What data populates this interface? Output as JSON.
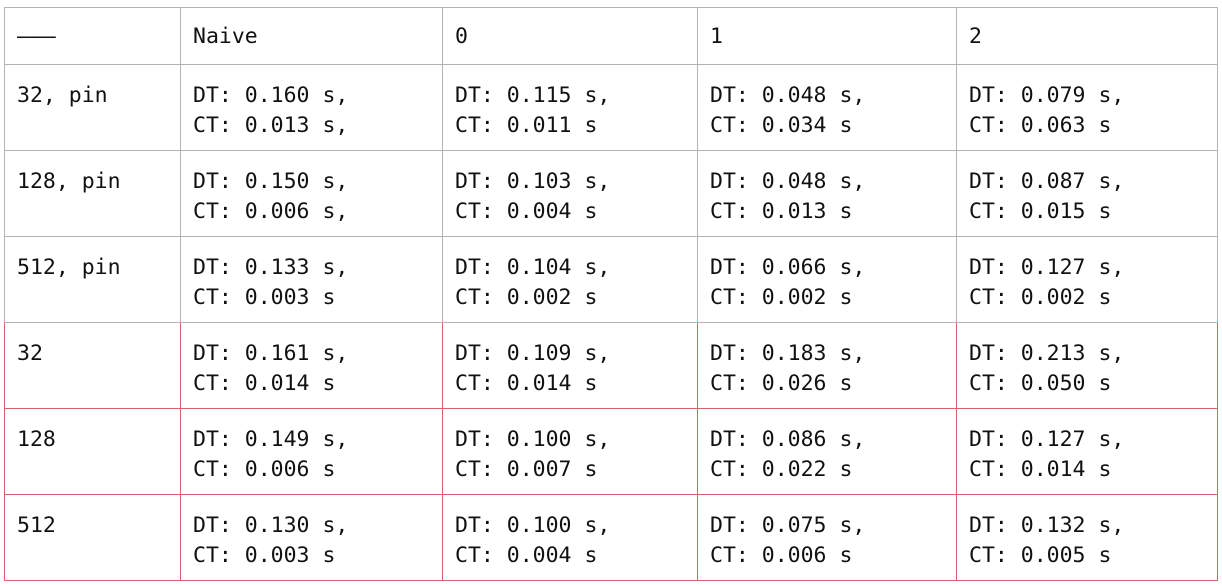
{
  "table": {
    "header": [
      "———",
      "Naive",
      "0",
      "1",
      "2"
    ],
    "rows": [
      {
        "label": "32, pin",
        "cells": [
          {
            "dt": "DT: 0.160 s,",
            "ct": "CT: 0.013 s,"
          },
          {
            "dt": "DT: 0.115 s,",
            "ct": "CT: 0.011 s"
          },
          {
            "dt": "DT: 0.048 s,",
            "ct": "CT: 0.034 s"
          },
          {
            "dt": "DT: 0.079 s,",
            "ct": "CT: 0.063 s"
          }
        ]
      },
      {
        "label": "128, pin",
        "cells": [
          {
            "dt": "DT: 0.150 s,",
            "ct": "CT: 0.006 s,"
          },
          {
            "dt": "DT: 0.103 s,",
            "ct": "CT: 0.004 s"
          },
          {
            "dt": "DT: 0.048 s,",
            "ct": "CT: 0.013 s"
          },
          {
            "dt": "DT: 0.087 s,",
            "ct": "CT: 0.015 s"
          }
        ]
      },
      {
        "label": "512, pin",
        "cells": [
          {
            "dt": "DT: 0.133 s,",
            "ct": "CT: 0.003 s"
          },
          {
            "dt": "DT: 0.104 s,",
            "ct": "CT: 0.002 s"
          },
          {
            "dt": "DT: 0.066 s,",
            "ct": "CT: 0.002 s"
          },
          {
            "dt": "DT: 0.127 s,",
            "ct": "CT: 0.002 s"
          }
        ]
      },
      {
        "label": "32",
        "cells": [
          {
            "dt": "DT: 0.161 s,",
            "ct": "CT: 0.014 s"
          },
          {
            "dt": "DT: 0.109 s,",
            "ct": "CT: 0.014 s"
          },
          {
            "dt": "DT: 0.183 s,",
            "ct": "CT: 0.026 s"
          },
          {
            "dt": "DT: 0.213 s,",
            "ct": "CT: 0.050 s"
          }
        ]
      },
      {
        "label": "128",
        "cells": [
          {
            "dt": "DT: 0.149 s,",
            "ct": "CT: 0.006 s"
          },
          {
            "dt": "DT: 0.100 s,",
            "ct": "CT: 0.007 s"
          },
          {
            "dt": "DT: 0.086 s,",
            "ct": "CT: 0.022 s"
          },
          {
            "dt": "DT: 0.127 s,",
            "ct": "CT: 0.014 s"
          }
        ]
      },
      {
        "label": "512",
        "cells": [
          {
            "dt": "DT: 0.130 s,",
            "ct": "CT: 0.003 s"
          },
          {
            "dt": "DT: 0.100 s,",
            "ct": "CT: 0.004 s"
          },
          {
            "dt": "DT: 0.075 s,",
            "ct": "CT: 0.006 s"
          },
          {
            "dt": "DT: 0.132 s,",
            "ct": "CT: 0.005 s"
          }
        ]
      }
    ]
  },
  "colors": {
    "grid_border": "#b3b3b3",
    "highlight_border": "#d9626a",
    "text": "#111111"
  }
}
